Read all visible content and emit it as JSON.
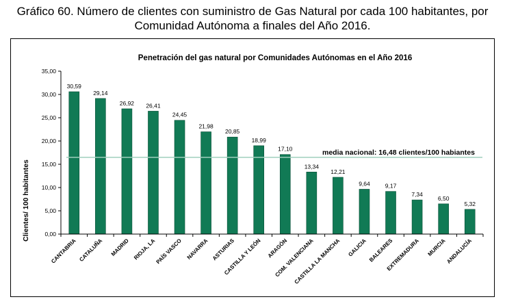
{
  "caption": {
    "line1": "Gráfico 60. Número de clientes con suministro de Gas Natural por cada 100 habitantes, por",
    "line2": "Comunidad Autónoma a finales del Año 2016."
  },
  "colors": {
    "bar": "#117a55",
    "bar_edge": "#0a4f37",
    "reference_line": "#9fcfbd"
  },
  "chart_data": {
    "type": "bar",
    "title": "Penetración del gas natural por Comunidades Autónomas en el Año 2016",
    "xlabel": "",
    "ylabel": "Clientes/ 100 habitantes",
    "ylim": [
      0,
      35
    ],
    "yticks": [
      0,
      5,
      10,
      15,
      20,
      25,
      30,
      35
    ],
    "ytick_labels": [
      "0,00",
      "5,00",
      "10,00",
      "15,00",
      "20,00",
      "25,00",
      "30,00",
      "35,00"
    ],
    "categories": [
      "CANTABRIA",
      "CATALUÑA",
      "MADRID",
      "RIOJA, LA",
      "PAÍS VASCO",
      "NAVARRA",
      "ASTURIAS",
      "CASTILLA Y LEÓN",
      "ARAGÓN",
      "COM. VALENCIANA",
      "CASTILLA LA MANCHA",
      "GALICIA",
      "BALEARES",
      "EXTREMADURA",
      "MURCIA",
      "ANDALUCÍA"
    ],
    "values": [
      30.59,
      29.14,
      26.92,
      26.41,
      24.45,
      21.98,
      20.85,
      18.99,
      17.1,
      13.34,
      12.21,
      9.64,
      9.17,
      7.34,
      6.5,
      5.32
    ],
    "value_labels": [
      "30,59",
      "29,14",
      "26,92",
      "26,41",
      "24,45",
      "21,98",
      "20,85",
      "18,99",
      "17,10",
      "13,34",
      "12,21",
      "9,64",
      "9,17",
      "7,34",
      "6,50",
      "5,32"
    ],
    "reference_line": {
      "value": 16.48,
      "label": "media nacional: 16,48 clientes/100 habiantes"
    }
  }
}
